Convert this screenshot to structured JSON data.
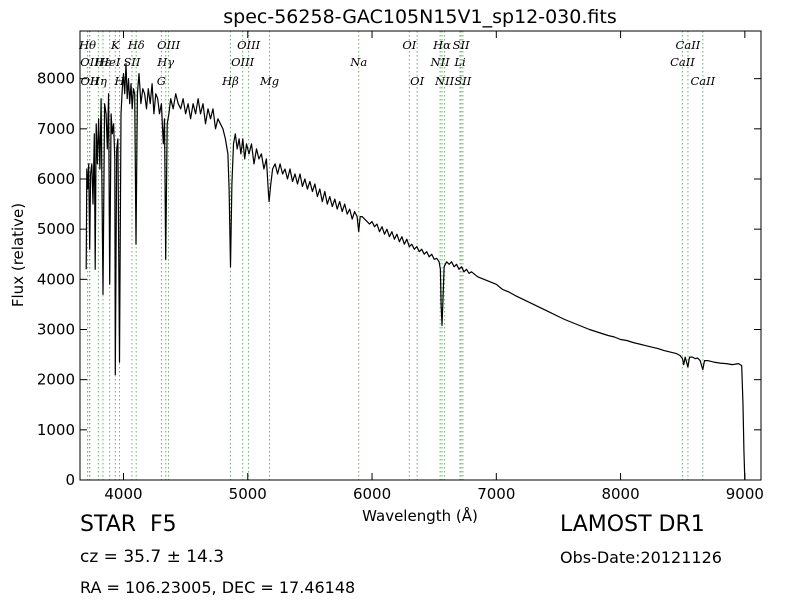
{
  "chart_data": {
    "type": "line",
    "title": "spec-56258-GAC105N15V1_sp12-030.fits",
    "xlabel": "Wavelength (Å)",
    "ylabel": "Flux (relative)",
    "xlim": [
      3650,
      9130
    ],
    "ylim": [
      0,
      8950
    ],
    "xticks": [
      4000,
      5000,
      6000,
      7000,
      8000,
      9000
    ],
    "yticks": [
      0,
      1000,
      2000,
      3000,
      4000,
      5000,
      6000,
      7000,
      8000
    ],
    "grid": false,
    "line_color": "#000000",
    "marker_color": "#5cb85c",
    "series": [
      {
        "points": [
          [
            3700,
            4200
          ],
          [
            3705,
            6200
          ],
          [
            3712,
            5800
          ],
          [
            3720,
            6300
          ],
          [
            3728,
            4600
          ],
          [
            3735,
            6100
          ],
          [
            3745,
            6300
          ],
          [
            3755,
            5500
          ],
          [
            3765,
            6900
          ],
          [
            3772,
            4200
          ],
          [
            3780,
            7100
          ],
          [
            3790,
            6300
          ],
          [
            3800,
            7200
          ],
          [
            3810,
            6200
          ],
          [
            3820,
            7600
          ],
          [
            3835,
            3700
          ],
          [
            3848,
            7500
          ],
          [
            3860,
            7300
          ],
          [
            3870,
            6600
          ],
          [
            3880,
            7700
          ],
          [
            3889,
            3900
          ],
          [
            3900,
            7300
          ],
          [
            3910,
            6900
          ],
          [
            3920,
            7100
          ],
          [
            3930,
            6400
          ],
          [
            3934,
            2100
          ],
          [
            3945,
            6600
          ],
          [
            3955,
            6800
          ],
          [
            3968,
            2350
          ],
          [
            3980,
            7300
          ],
          [
            3990,
            7800
          ],
          [
            4000,
            8100
          ],
          [
            4010,
            7700
          ],
          [
            4020,
            8300
          ],
          [
            4030,
            7600
          ],
          [
            4040,
            8000
          ],
          [
            4050,
            7500
          ],
          [
            4060,
            7900
          ],
          [
            4070,
            7400
          ],
          [
            4080,
            7800
          ],
          [
            4090,
            7700
          ],
          [
            4101,
            4700
          ],
          [
            4112,
            7700
          ],
          [
            4125,
            8100
          ],
          [
            4140,
            7500
          ],
          [
            4155,
            7800
          ],
          [
            4170,
            7700
          ],
          [
            4185,
            7400
          ],
          [
            4200,
            7800
          ],
          [
            4215,
            7500
          ],
          [
            4230,
            7900
          ],
          [
            4245,
            7300
          ],
          [
            4260,
            7700
          ],
          [
            4275,
            7600
          ],
          [
            4290,
            7300
          ],
          [
            4305,
            7500
          ],
          [
            4320,
            6700
          ],
          [
            4330,
            7200
          ],
          [
            4340,
            4400
          ],
          [
            4352,
            7100
          ],
          [
            4365,
            7300
          ],
          [
            4380,
            7600
          ],
          [
            4400,
            7400
          ],
          [
            4420,
            7700
          ],
          [
            4440,
            7500
          ],
          [
            4460,
            7400
          ],
          [
            4480,
            7600
          ],
          [
            4500,
            7300
          ],
          [
            4520,
            7500
          ],
          [
            4540,
            7200
          ],
          [
            4560,
            7500
          ],
          [
            4580,
            7300
          ],
          [
            4600,
            7600
          ],
          [
            4620,
            7300
          ],
          [
            4640,
            7500
          ],
          [
            4660,
            7100
          ],
          [
            4680,
            7400
          ],
          [
            4700,
            7200
          ],
          [
            4720,
            7400
          ],
          [
            4740,
            7000
          ],
          [
            4760,
            7200
          ],
          [
            4780,
            7100
          ],
          [
            4800,
            7000
          ],
          [
            4820,
            6800
          ],
          [
            4840,
            6500
          ],
          [
            4850,
            5800
          ],
          [
            4861,
            4250
          ],
          [
            4872,
            5900
          ],
          [
            4885,
            6700
          ],
          [
            4900,
            6900
          ],
          [
            4915,
            6600
          ],
          [
            4930,
            6800
          ],
          [
            4945,
            6500
          ],
          [
            4960,
            6800
          ],
          [
            4975,
            6400
          ],
          [
            4990,
            6700
          ],
          [
            5010,
            6500
          ],
          [
            5030,
            6700
          ],
          [
            5050,
            6300
          ],
          [
            5070,
            6600
          ],
          [
            5090,
            6400
          ],
          [
            5110,
            6500
          ],
          [
            5130,
            6200
          ],
          [
            5150,
            6400
          ],
          [
            5167,
            5700
          ],
          [
            5172,
            5550
          ],
          [
            5185,
            5900
          ],
          [
            5200,
            6200
          ],
          [
            5220,
            6300
          ],
          [
            5240,
            6100
          ],
          [
            5260,
            6300
          ],
          [
            5280,
            6100
          ],
          [
            5300,
            6200
          ],
          [
            5320,
            6000
          ],
          [
            5340,
            6200
          ],
          [
            5360,
            5950
          ],
          [
            5380,
            6100
          ],
          [
            5400,
            5900
          ],
          [
            5420,
            6100
          ],
          [
            5440,
            5850
          ],
          [
            5460,
            6000
          ],
          [
            5480,
            5800
          ],
          [
            5500,
            5950
          ],
          [
            5520,
            5750
          ],
          [
            5540,
            5900
          ],
          [
            5560,
            5650
          ],
          [
            5580,
            5800
          ],
          [
            5600,
            5550
          ],
          [
            5620,
            5750
          ],
          [
            5640,
            5500
          ],
          [
            5660,
            5650
          ],
          [
            5680,
            5450
          ],
          [
            5700,
            5600
          ],
          [
            5720,
            5400
          ],
          [
            5740,
            5550
          ],
          [
            5760,
            5350
          ],
          [
            5780,
            5500
          ],
          [
            5800,
            5300
          ],
          [
            5820,
            5400
          ],
          [
            5840,
            5200
          ],
          [
            5860,
            5350
          ],
          [
            5880,
            5250
          ],
          [
            5893,
            4950
          ],
          [
            5905,
            5250
          ],
          [
            5920,
            5250
          ],
          [
            5940,
            5200
          ],
          [
            5960,
            5150
          ],
          [
            5980,
            5100
          ],
          [
            6000,
            5150
          ],
          [
            6020,
            5050
          ],
          [
            6040,
            5100
          ],
          [
            6060,
            4950
          ],
          [
            6080,
            5050
          ],
          [
            6100,
            4900
          ],
          [
            6120,
            5000
          ],
          [
            6140,
            4850
          ],
          [
            6160,
            4950
          ],
          [
            6180,
            4800
          ],
          [
            6200,
            4900
          ],
          [
            6220,
            4750
          ],
          [
            6240,
            4850
          ],
          [
            6260,
            4700
          ],
          [
            6280,
            4800
          ],
          [
            6300,
            4650
          ],
          [
            6320,
            4700
          ],
          [
            6340,
            4600
          ],
          [
            6360,
            4650
          ],
          [
            6380,
            4550
          ],
          [
            6400,
            4600
          ],
          [
            6420,
            4500
          ],
          [
            6440,
            4550
          ],
          [
            6460,
            4450
          ],
          [
            6480,
            4500
          ],
          [
            6500,
            4400
          ],
          [
            6520,
            4420
          ],
          [
            6540,
            4350
          ],
          [
            6550,
            4200
          ],
          [
            6556,
            3500
          ],
          [
            6563,
            3080
          ],
          [
            6570,
            3550
          ],
          [
            6580,
            4250
          ],
          [
            6600,
            4350
          ],
          [
            6620,
            4300
          ],
          [
            6640,
            4350
          ],
          [
            6660,
            4250
          ],
          [
            6680,
            4300
          ],
          [
            6700,
            4200
          ],
          [
            6720,
            4250
          ],
          [
            6740,
            4150
          ],
          [
            6760,
            4200
          ],
          [
            6780,
            4120
          ],
          [
            6800,
            4150
          ],
          [
            6850,
            4050
          ],
          [
            6900,
            4000
          ],
          [
            6950,
            3950
          ],
          [
            7000,
            3900
          ],
          [
            7050,
            3800
          ],
          [
            7100,
            3750
          ],
          [
            7150,
            3680
          ],
          [
            7200,
            3620
          ],
          [
            7250,
            3560
          ],
          [
            7300,
            3500
          ],
          [
            7350,
            3440
          ],
          [
            7400,
            3380
          ],
          [
            7450,
            3320
          ],
          [
            7500,
            3260
          ],
          [
            7550,
            3200
          ],
          [
            7600,
            3150
          ],
          [
            7650,
            3100
          ],
          [
            7700,
            3050
          ],
          [
            7750,
            3000
          ],
          [
            7800,
            2960
          ],
          [
            7850,
            2920
          ],
          [
            7900,
            2880
          ],
          [
            7950,
            2850
          ],
          [
            8000,
            2800
          ],
          [
            8050,
            2780
          ],
          [
            8100,
            2740
          ],
          [
            8150,
            2710
          ],
          [
            8200,
            2680
          ],
          [
            8250,
            2650
          ],
          [
            8300,
            2620
          ],
          [
            8350,
            2580
          ],
          [
            8400,
            2550
          ],
          [
            8450,
            2520
          ],
          [
            8480,
            2480
          ],
          [
            8498,
            2420
          ],
          [
            8508,
            2300
          ],
          [
            8520,
            2450
          ],
          [
            8542,
            2250
          ],
          [
            8555,
            2450
          ],
          [
            8580,
            2450
          ],
          [
            8600,
            2420
          ],
          [
            8620,
            2430
          ],
          [
            8640,
            2380
          ],
          [
            8662,
            2200
          ],
          [
            8675,
            2380
          ],
          [
            8700,
            2380
          ],
          [
            8750,
            2350
          ],
          [
            8800,
            2330
          ],
          [
            8850,
            2320
          ],
          [
            8900,
            2300
          ],
          [
            8950,
            2320
          ],
          [
            8975,
            2280
          ],
          [
            8985,
            1500
          ],
          [
            8992,
            600
          ],
          [
            9000,
            0
          ]
        ]
      }
    ],
    "lines": [
      {
        "wl": 3711,
        "label": "Hθ",
        "row": 1
      },
      {
        "wl": 3727,
        "label": "OII",
        "row": 2
      },
      {
        "wl": 3729,
        "label": "OII",
        "row": 3
      },
      {
        "wl": 3798,
        "label": "Hη",
        "row": 3
      },
      {
        "wl": 3835,
        "label": "Hε",
        "row": 2
      },
      {
        "wl": 3889,
        "label": "HeI",
        "row": 2
      },
      {
        "wl": 3934,
        "label": "K",
        "row": 1
      },
      {
        "wl": 3968,
        "label": "H",
        "row": 3
      },
      {
        "wl": 4068,
        "label": "SII",
        "row": 2
      },
      {
        "wl": 4102,
        "label": "Hδ",
        "row": 1
      },
      {
        "wl": 4305,
        "label": "G",
        "row": 3
      },
      {
        "wl": 4340,
        "label": "Hγ",
        "row": 2
      },
      {
        "wl": 4363,
        "label": "OIII",
        "row": 1
      },
      {
        "wl": 4861,
        "label": "Hβ",
        "row": 3
      },
      {
        "wl": 4959,
        "label": "OIII",
        "row": 2
      },
      {
        "wl": 5007,
        "label": "OIII",
        "row": 1
      },
      {
        "wl": 5175,
        "label": "Mg",
        "row": 3
      },
      {
        "wl": 5893,
        "label": "Na",
        "row": 2
      },
      {
        "wl": 6300,
        "label": "OI",
        "row": 1
      },
      {
        "wl": 6363,
        "label": "OI",
        "row": 3
      },
      {
        "wl": 6548,
        "label": "NII",
        "row": 2
      },
      {
        "wl": 6563,
        "label": "Hα",
        "row": 1
      },
      {
        "wl": 6584,
        "label": "NII",
        "row": 3
      },
      {
        "wl": 6708,
        "label": "Li",
        "row": 2
      },
      {
        "wl": 6717,
        "label": "SII",
        "row": 1
      },
      {
        "wl": 6731,
        "label": "SII",
        "row": 3
      },
      {
        "wl": 8498,
        "label": "CaII",
        "row": 2
      },
      {
        "wl": 8542,
        "label": "CaII",
        "row": 1
      },
      {
        "wl": 8662,
        "label": "CaII",
        "row": 3
      }
    ]
  },
  "info": {
    "class_type": "STAR",
    "subclass": "F5",
    "survey": "LAMOST DR1",
    "cz": "cz = 35.7 ± 14.3",
    "obs_date": "Obs-Date:20121126",
    "radec": "RA = 106.23005, DEC = 17.46148"
  }
}
